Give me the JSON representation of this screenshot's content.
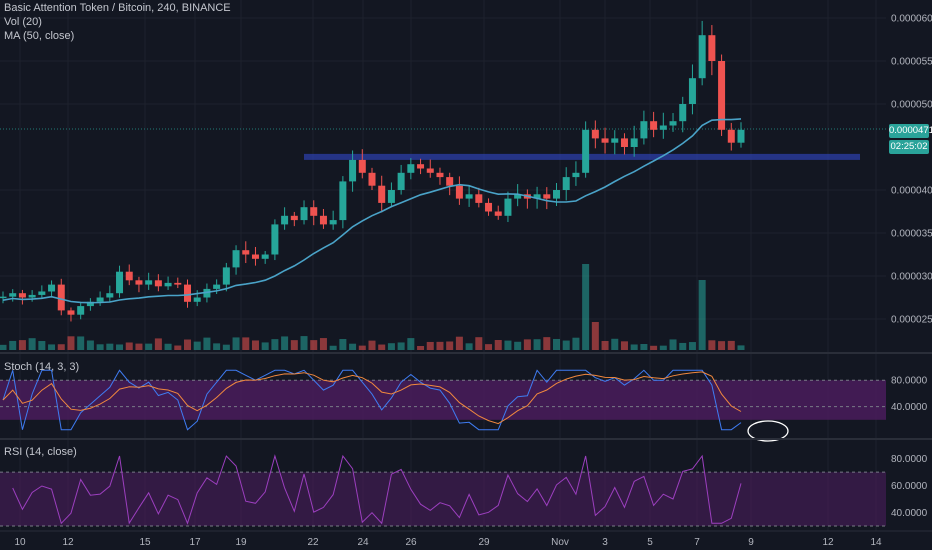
{
  "header": {
    "symbol": "Basic Attention Token / Bitcoin, 240, BINANCE",
    "volume_indicator": "Vol (20)",
    "ma_indicator": "MA (50, close)",
    "stoch_indicator": "Stoch (14, 3, 3)",
    "rsi_indicator": "RSI (14, close)"
  },
  "colors": {
    "background": "#131722",
    "up": "#26a69a",
    "down": "#ef5350",
    "ma": "#4aa3c8",
    "zone": "#2c3fa8",
    "indicator_band": "#4a1c5c",
    "stoch_k": "#3f7cf2",
    "stoch_d": "#f0883e",
    "rsi": "#9c3fbf",
    "annotation": "#ffffff"
  },
  "price_panel": {
    "last_price": "0.00004710",
    "countdown": "02:25:02",
    "resistance_zone": [
      4.35e-05,
      4.42e-05
    ]
  },
  "chart_data": [
    {
      "type": "candlestick",
      "title": "Basic Attention Token / Bitcoin, 240, BINANCE",
      "x_ticks": [
        "10",
        "12",
        "15",
        "17",
        "19",
        "22",
        "24",
        "26",
        "29",
        "Nov",
        "3",
        "5",
        "7",
        "9",
        "12",
        "14"
      ],
      "y_ticks": [
        "0.00006000",
        "0.00005500",
        "0.00005000",
        "0.00004000",
        "0.00003500",
        "0.00003000",
        "0.00002500"
      ],
      "y_range": [
        2.3e-05,
        6.05e-05
      ],
      "closes": [
        2.76e-05,
        2.8e-05,
        2.75e-05,
        2.78e-05,
        2.82e-05,
        2.9e-05,
        2.6e-05,
        2.55e-05,
        2.65e-05,
        2.7e-05,
        2.75e-05,
        2.8e-05,
        3.05e-05,
        2.95e-05,
        2.9e-05,
        2.95e-05,
        2.88e-05,
        2.92e-05,
        2.9e-05,
        2.7e-05,
        2.75e-05,
        2.85e-05,
        2.9e-05,
        3.1e-05,
        3.3e-05,
        3.25e-05,
        3.2e-05,
        3.25e-05,
        3.6e-05,
        3.7e-05,
        3.65e-05,
        3.8e-05,
        3.7e-05,
        3.6e-05,
        3.65e-05,
        4.1e-05,
        4.35e-05,
        4.2e-05,
        4.05e-05,
        3.85e-05,
        4e-05,
        4.2e-05,
        4.3e-05,
        4.25e-05,
        4.2e-05,
        4.15e-05,
        4.05e-05,
        3.9e-05,
        3.95e-05,
        3.85e-05,
        3.75e-05,
        3.7e-05,
        3.9e-05,
        3.95e-05,
        3.9e-05,
        3.95e-05,
        3.9e-05,
        4e-05,
        4.15e-05,
        4.2e-05,
        4.7e-05,
        4.6e-05,
        4.55e-05,
        4.6e-05,
        4.5e-05,
        4.6e-05,
        4.8e-05,
        4.7e-05,
        4.75e-05,
        4.8e-05,
        5e-05,
        5.3e-05,
        5.8e-05,
        5.5e-05,
        4.7e-05,
        4.55e-05,
        4.7e-05
      ],
      "moving_average": {
        "name": "MA (50, close)"
      },
      "volume": {
        "name": "Vol (20)"
      },
      "stochastic": {
        "name": "Stoch (14, 3, 3)",
        "y_ticks": [
          "80.0000",
          "40.0000"
        ],
        "y_range": [
          0,
          100
        ],
        "band": [
          20,
          80
        ]
      },
      "rsi": {
        "name": "RSI (14, close)",
        "y_ticks": [
          "80.0000",
          "60.0000",
          "40.0000"
        ],
        "y_range": [
          30,
          85
        ],
        "band": [
          30,
          70
        ]
      }
    }
  ]
}
